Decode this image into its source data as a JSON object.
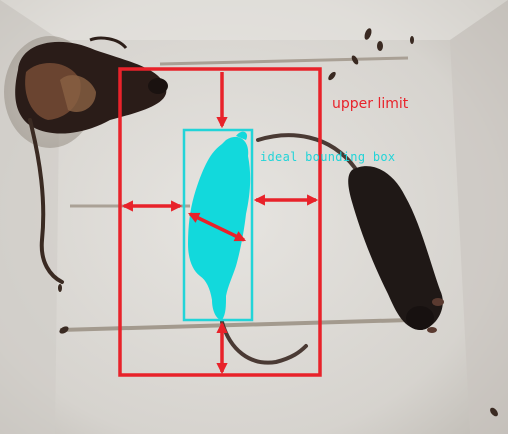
{
  "annotations": {
    "upper_limit": {
      "label": "upper limit",
      "color": "#e8222a"
    },
    "ideal_box": {
      "label": "ideal bounding box",
      "color": "#22d4d8"
    }
  },
  "colors": {
    "floor": "#d8d6d2",
    "mouse_dark": "#1e1716",
    "mouse_brown": "#4a2e22",
    "mask": "#12d9dc"
  }
}
